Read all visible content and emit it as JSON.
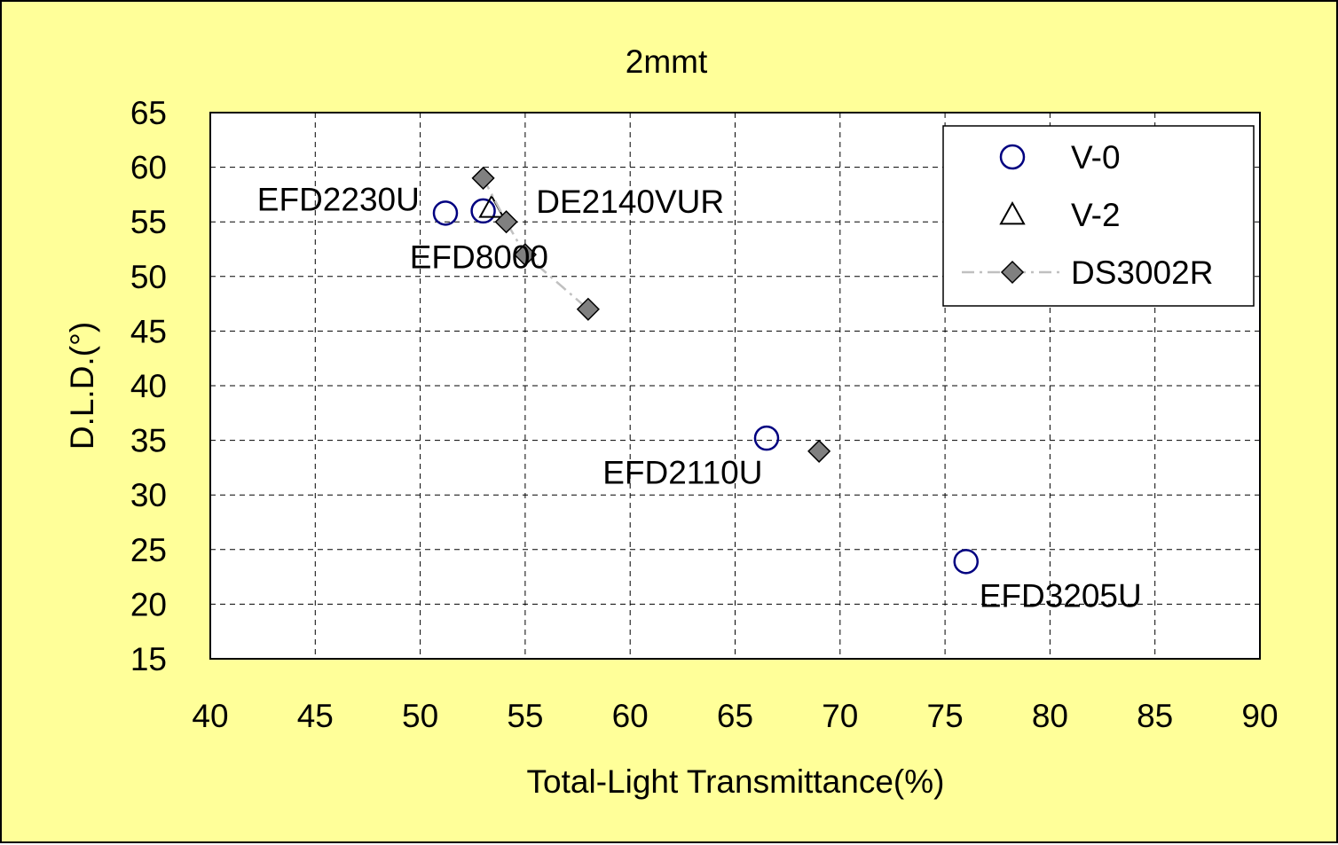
{
  "chart_data": {
    "type": "scatter",
    "title": "2mmt",
    "xlabel": "Total-Light Transmittance(%)",
    "ylabel": "D.L.D.(°)",
    "xlim": [
      40,
      90
    ],
    "ylim": [
      15,
      65
    ],
    "x_ticks": [
      40,
      45,
      50,
      55,
      60,
      65,
      70,
      75,
      80,
      85,
      90
    ],
    "y_ticks": [
      15,
      20,
      25,
      30,
      35,
      40,
      45,
      50,
      55,
      60,
      65
    ],
    "grid": true,
    "legend_position": "top-right",
    "series": [
      {
        "name": "V-0",
        "marker": "circle",
        "color": "#000080",
        "points": [
          {
            "x": 51.2,
            "y": 55.8
          },
          {
            "x": 53.0,
            "y": 56.0
          },
          {
            "x": 66.5,
            "y": 35.2
          },
          {
            "x": 76.0,
            "y": 23.9
          }
        ]
      },
      {
        "name": "V-2",
        "marker": "triangle",
        "color": "#000000",
        "points": [
          {
            "x": 53.4,
            "y": 56.3
          }
        ]
      },
      {
        "name": "DS3002R",
        "marker": "diamond",
        "color": "#808080",
        "line": "dash-dot",
        "line_color": "#c0c0c0",
        "points": [
          {
            "x": 53.0,
            "y": 59.0
          },
          {
            "x": 54.1,
            "y": 55.0
          },
          {
            "x": 55.0,
            "y": 52.0
          },
          {
            "x": 58.0,
            "y": 47.0
          },
          {
            "x": 69.0,
            "y": 34.0
          }
        ],
        "connected_count": 4
      }
    ],
    "annotations": [
      {
        "text": "EFD2230U",
        "x": 46.1,
        "y": 57.1
      },
      {
        "text": "DE2140VUR",
        "x": 60.0,
        "y": 56.9
      },
      {
        "text": "EFD8000",
        "x": 52.8,
        "y": 51.8
      },
      {
        "text": "EFD2110U",
        "x": 62.5,
        "y": 32.1
      },
      {
        "text": "EFD3205U",
        "x": 80.5,
        "y": 20.8
      }
    ]
  }
}
